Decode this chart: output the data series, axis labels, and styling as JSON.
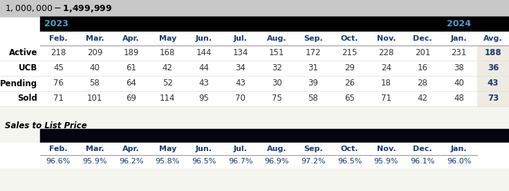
{
  "title": "$1,000,000 - $1,499,999",
  "title_bg": "#c8c8c8",
  "header_bg": "#000000",
  "months": [
    "Feb.",
    "Mar.",
    "Apr.",
    "May",
    "Jun.",
    "Jul.",
    "Aug.",
    "Sep.",
    "Oct.",
    "Nov.",
    "Dec.",
    "Jan."
  ],
  "avg_label": "Avg.",
  "rows": [
    {
      "label": "Active",
      "values": [
        218,
        209,
        189,
        168,
        144,
        134,
        151,
        172,
        215,
        228,
        201,
        231
      ],
      "avg": 188
    },
    {
      "label": "UCB",
      "values": [
        45,
        40,
        61,
        42,
        44,
        34,
        32,
        31,
        29,
        24,
        16,
        38
      ],
      "avg": 36
    },
    {
      "label": "Pending",
      "values": [
        76,
        58,
        64,
        52,
        43,
        43,
        30,
        39,
        26,
        18,
        28,
        40
      ],
      "avg": 43
    },
    {
      "label": "Sold",
      "values": [
        71,
        101,
        69,
        114,
        95,
        70,
        75,
        58,
        65,
        71,
        42,
        48
      ],
      "avg": 73
    }
  ],
  "sales_label": "Sales to List Price",
  "sales_months": [
    "Feb.",
    "Mar.",
    "Apr.",
    "May",
    "Jun.",
    "Jul.",
    "Aug.",
    "Sep.",
    "Oct.",
    "Nov.",
    "Dec.",
    "Jan."
  ],
  "sales_values": [
    "96.6%",
    "95.9%",
    "96.2%",
    "95.8%",
    "96.5%",
    "96.7%",
    "96.9%",
    "97.2%",
    "96.5%",
    "95.9%",
    "96.1%",
    "96.0%"
  ],
  "avg_bg": "#eeebe3",
  "label_color": "#000000",
  "value_color": "#333333",
  "avg_value_color": "#1a3a6e",
  "sales_header_bg": "#050510",
  "sales_value_color": "#1a3a6e",
  "month_header_color": "#1a3a6e",
  "year_label_color": "#4a9fd4",
  "white": "#ffffff",
  "fig_bg": "#f5f5f0"
}
